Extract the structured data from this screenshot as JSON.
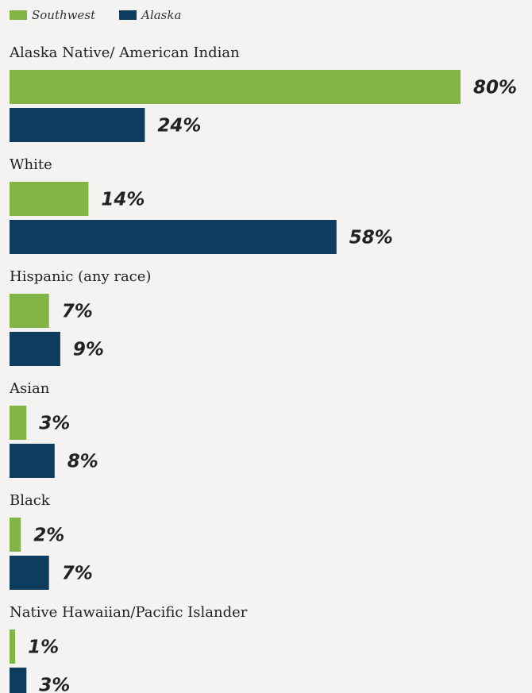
{
  "colors": {
    "southwest": "#82b446",
    "alaska": "#0d3c5e",
    "background": "#f4f3f1",
    "text": "#222222"
  },
  "legend": {
    "southwest": "Southwest",
    "alaska": "Alaska"
  },
  "chart_data": {
    "type": "bar",
    "orientation": "horizontal",
    "categories": [
      "Alaska Native/ American Indian",
      "White",
      "Hispanic (any race)",
      "Asian",
      "Black",
      "Native Hawaiian/Pacific Islander"
    ],
    "series": [
      {
        "name": "Southwest",
        "values": [
          80,
          14,
          7,
          3,
          2,
          1
        ],
        "labels": [
          "80%",
          "14%",
          "7%",
          "3%",
          "2%",
          "1%"
        ]
      },
      {
        "name": "Alaska",
        "values": [
          24,
          58,
          9,
          8,
          7,
          3
        ],
        "labels": [
          "24%",
          "58%",
          "9%",
          "8%",
          "7%",
          "3%"
        ]
      }
    ],
    "title": "",
    "xlabel": "",
    "ylabel": "",
    "xlim": [
      0,
      100
    ],
    "grid": false,
    "legend_position": "top-left",
    "value_format": "percent"
  }
}
